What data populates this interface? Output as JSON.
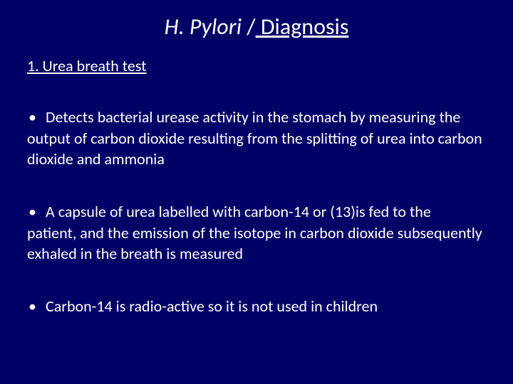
{
  "background_color": "#000066",
  "text_color": "#ffffff",
  "title_fontsize": 32,
  "body_fontsize": 22,
  "title": {
    "italic": "H. Pylori ",
    "slash": "/",
    "underlined": " Diagnosis"
  },
  "subtitle": "1. Urea breath test",
  "bullets": [
    {
      "first_line": "Detects bacterial urease activity in the stomach by measuring the",
      "rest": "output of carbon dioxide resulting from the splitting of urea into carbon dioxide and ammonia"
    },
    {
      "first_line": "A capsule of urea labelled with carbon-14 or (13)is fed to the",
      "rest": "patient, and the emission of the isotope in carbon dioxide subsequently exhaled in the breath is measured"
    },
    {
      "first_line": "Carbon-14 is radio-active so it is not used in children",
      "rest": ""
    }
  ]
}
